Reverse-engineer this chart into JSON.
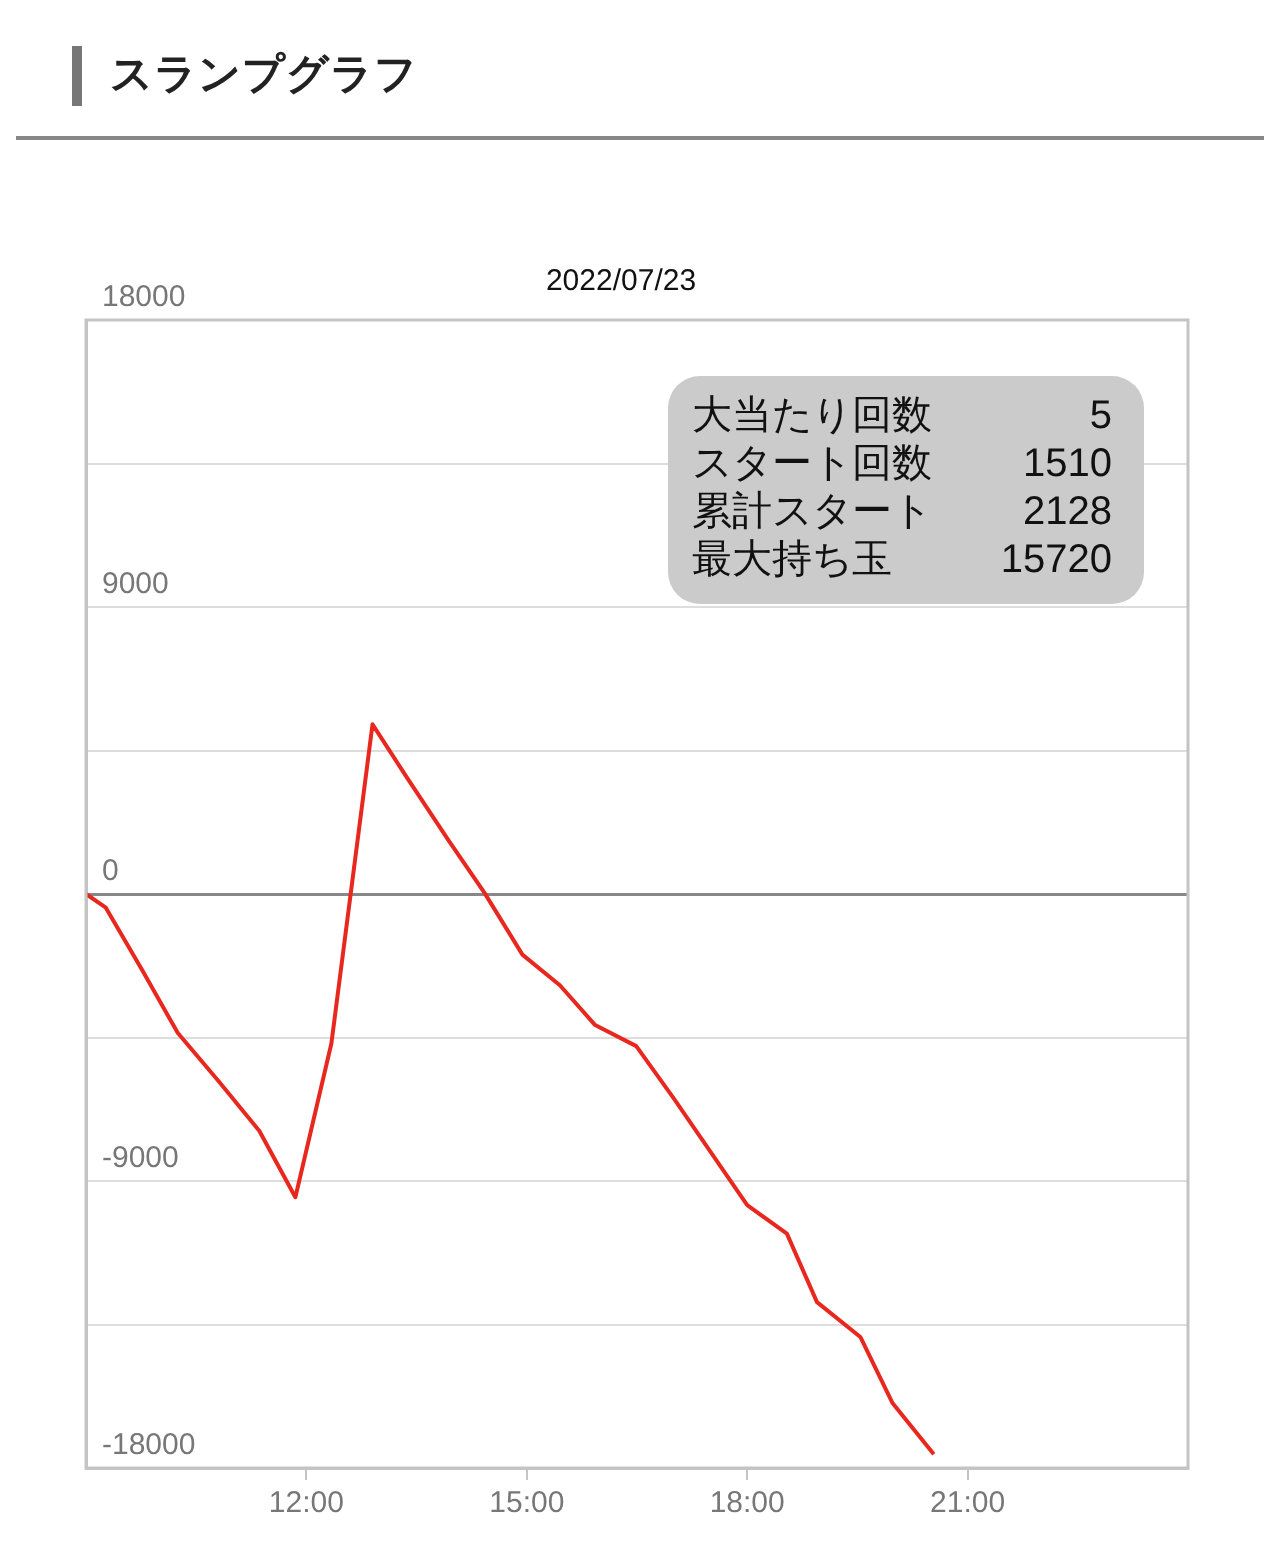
{
  "chart_data": {
    "type": "line",
    "title": "スランプグラフ",
    "subtitle": "2022/07/23",
    "x": [
      9.0,
      9.27,
      9.77,
      10.25,
      10.82,
      11.36,
      11.85,
      12.34,
      12.9,
      13.36,
      13.93,
      14.42,
      14.94,
      15.45,
      15.93,
      16.49,
      17.0,
      18.0,
      18.54,
      18.95,
      19.54,
      19.98,
      20.54
    ],
    "series": [
      {
        "color": "#e8281e",
        "values": [
          0,
          -430,
          -2410,
          -4360,
          -5910,
          -7430,
          -9510,
          -4690,
          5320,
          3680,
          1700,
          50,
          -1900,
          -2860,
          -4110,
          -4770,
          -6410,
          -9760,
          -10650,
          -12800,
          -13890,
          -15970,
          -17570
        ]
      }
    ],
    "xlim": [
      9,
      24
    ],
    "xticks": [
      {
        "value": 12,
        "label": "12:00"
      },
      {
        "value": 15,
        "label": "15:00"
      },
      {
        "value": 18,
        "label": "18:00"
      },
      {
        "value": 21,
        "label": "21:00"
      }
    ],
    "ylim": [
      -18000,
      18000
    ],
    "yticks": [
      -18000,
      {
        "value": -13500,
        "label": null
      },
      -9000,
      {
        "value": -4500,
        "label": null
      },
      0,
      {
        "value": 4500,
        "label": null
      },
      9000,
      {
        "value": 13500,
        "label": null
      },
      18000
    ],
    "annotations": [
      "大当たり回数 5",
      "スタート回数 1510",
      "累計スタート 2128",
      "最大持ち玉 15720"
    ],
    "grid": "y",
    "legend": false,
    "marker": "none",
    "line_style": "solid"
  }
}
